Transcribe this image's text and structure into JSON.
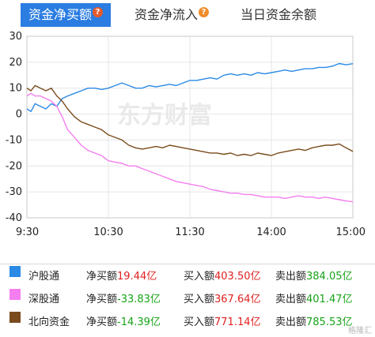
{
  "tabs": [
    {
      "label": "资金净买额",
      "help": "?"
    },
    {
      "label": "资金净流入",
      "help": "?"
    },
    {
      "label": "当日资金余额"
    }
  ],
  "watermark": "东方财富",
  "chart_data": {
    "type": "line",
    "x_ticks": [
      "9:30",
      "10:30",
      "11:30",
      "14:00",
      "15:00"
    ],
    "ylim": [
      -40,
      30
    ],
    "y_ticks": [
      30,
      20,
      10,
      0,
      -10,
      -20,
      -30,
      -40
    ],
    "grid": true,
    "x_domain": [
      0,
      240
    ],
    "series": [
      {
        "name": "沪股通",
        "color": "#2b8ae6",
        "x": [
          0,
          3,
          6,
          10,
          14,
          18,
          22,
          26,
          30,
          35,
          40,
          45,
          50,
          55,
          60,
          65,
          70,
          75,
          80,
          85,
          90,
          95,
          100,
          105,
          110,
          115,
          120,
          125,
          130,
          135,
          140,
          145,
          150,
          155,
          160,
          165,
          170,
          175,
          180,
          185,
          190,
          195,
          200,
          205,
          210,
          215,
          220,
          225,
          230,
          235,
          240
        ],
        "values": [
          2,
          1,
          4,
          3,
          2,
          4,
          3,
          6,
          7,
          8,
          9,
          10,
          10,
          9.5,
          10,
          11,
          12,
          11,
          10,
          10,
          11,
          10.5,
          11,
          11.5,
          11,
          12,
          13,
          13,
          13.5,
          14,
          13.5,
          15,
          15.5,
          15,
          15.5,
          15,
          16,
          15.5,
          16,
          16.5,
          17,
          16.5,
          17,
          17.5,
          17.5,
          18,
          18,
          18.5,
          19.5,
          19,
          19.44
        ]
      },
      {
        "name": "深股通",
        "color": "#f47ef0",
        "x": [
          0,
          3,
          6,
          10,
          14,
          18,
          22,
          26,
          30,
          35,
          40,
          45,
          50,
          55,
          60,
          65,
          70,
          75,
          80,
          85,
          90,
          95,
          100,
          105,
          110,
          115,
          120,
          125,
          130,
          135,
          140,
          145,
          150,
          155,
          160,
          165,
          170,
          175,
          180,
          185,
          190,
          195,
          200,
          205,
          210,
          215,
          220,
          225,
          230,
          235,
          240
        ],
        "values": [
          7,
          8,
          7,
          7,
          6,
          5,
          3,
          -1,
          -6,
          -9,
          -12,
          -14,
          -15,
          -16,
          -18,
          -18.5,
          -19,
          -20,
          -20,
          -21,
          -22,
          -23,
          -24,
          -25,
          -26,
          -26.5,
          -27,
          -27.5,
          -28,
          -29,
          -29.5,
          -30,
          -30.5,
          -30.5,
          -31,
          -31,
          -31.5,
          -32,
          -32,
          -32,
          -32.5,
          -32,
          -31.5,
          -32,
          -32,
          -32.5,
          -32,
          -32.5,
          -33,
          -33.5,
          -33.83
        ]
      },
      {
        "name": "北向资金",
        "color": "#7a4b1c",
        "x": [
          0,
          3,
          6,
          10,
          14,
          18,
          22,
          26,
          30,
          35,
          40,
          45,
          50,
          55,
          60,
          65,
          70,
          75,
          80,
          85,
          90,
          95,
          100,
          105,
          110,
          115,
          120,
          125,
          130,
          135,
          140,
          145,
          150,
          155,
          160,
          165,
          170,
          175,
          180,
          185,
          190,
          195,
          200,
          205,
          210,
          215,
          220,
          225,
          230,
          235,
          240
        ],
        "values": [
          10,
          9,
          11,
          10,
          9,
          10,
          7,
          5,
          2,
          -1,
          -3,
          -4,
          -5,
          -6,
          -8,
          -9,
          -10,
          -12,
          -13,
          -13.5,
          -13,
          -12.5,
          -13,
          -12,
          -12.5,
          -13,
          -13.5,
          -14,
          -14.5,
          -15,
          -15,
          -15.5,
          -15,
          -16,
          -15.5,
          -16,
          -15,
          -15.5,
          -16,
          -15,
          -14.5,
          -14,
          -13.5,
          -14,
          -13,
          -12.5,
          -12,
          -12,
          -11.5,
          -13,
          -14.39
        ]
      }
    ]
  },
  "legend": [
    {
      "name": "沪股通",
      "color": "#2b8ae6",
      "net_label": "净买额",
      "net_value": "19.44亿",
      "buy_label": "买入额",
      "buy_value": "403.50亿",
      "sell_label": "卖出额",
      "sell_value": "384.05亿"
    },
    {
      "name": "深股通",
      "color": "#f47ef0",
      "net_label": "净买额",
      "net_value": "-33.83亿",
      "buy_label": "买入额",
      "buy_value": "367.64亿",
      "sell_label": "卖出额",
      "sell_value": "401.47亿"
    },
    {
      "name": "北向资金",
      "color": "#7a4b1c",
      "net_label": "净买额",
      "net_value": "-14.39亿",
      "buy_label": "买入额",
      "buy_value": "771.14亿",
      "sell_label": "卖出额",
      "sell_value": "785.53亿"
    }
  ],
  "corner_logo": "格隆汇"
}
